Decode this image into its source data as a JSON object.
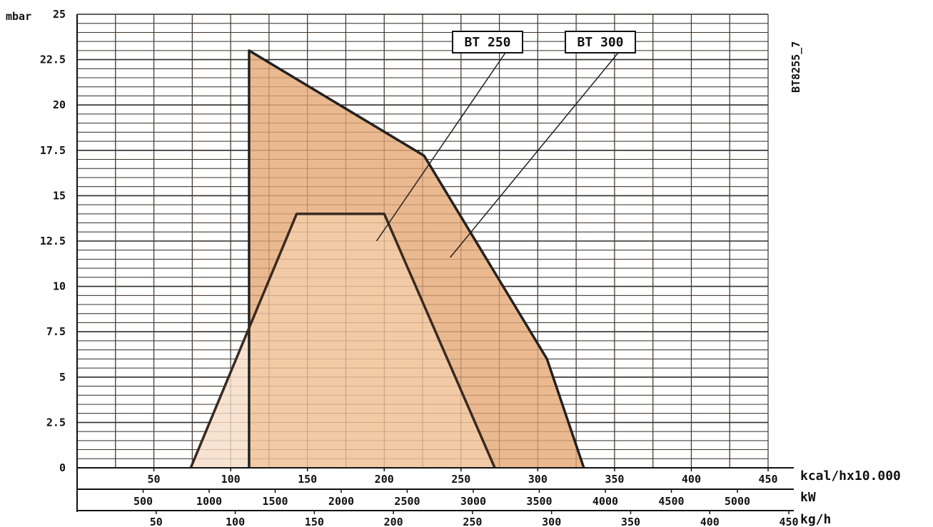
{
  "chart_data": {
    "type": "area",
    "y_unit_label": "mbar",
    "figure_code": "BT8255_7",
    "y_range": [
      0,
      25
    ],
    "y_ticks": [
      "0",
      "2.5",
      "5",
      "7.5",
      "10",
      "12.5",
      "15",
      "17.5",
      "20",
      "22.5",
      "25"
    ],
    "x_range_kcal": [
      0,
      450
    ],
    "x_axes": [
      {
        "name": "kcal",
        "unit_label": "kcal/hx10.000",
        "ticks": [
          {
            "label": "50",
            "kcal": 50
          },
          {
            "label": "100",
            "kcal": 100
          },
          {
            "label": "150",
            "kcal": 150
          },
          {
            "label": "200",
            "kcal": 200
          },
          {
            "label": "250",
            "kcal": 250
          },
          {
            "label": "300",
            "kcal": 300
          },
          {
            "label": "350",
            "kcal": 350
          },
          {
            "label": "400",
            "kcal": 400
          },
          {
            "label": "450",
            "kcal": 450
          }
        ]
      },
      {
        "name": "kW",
        "unit_label": "kW",
        "ticks": [
          {
            "label": "500",
            "kcal": 43
          },
          {
            "label": "1000",
            "kcal": 86
          },
          {
            "label": "1500",
            "kcal": 129
          },
          {
            "label": "2000",
            "kcal": 172
          },
          {
            "label": "2500",
            "kcal": 215
          },
          {
            "label": "3000",
            "kcal": 258
          },
          {
            "label": "3500",
            "kcal": 301
          },
          {
            "label": "4000",
            "kcal": 344
          },
          {
            "label": "4500",
            "kcal": 387
          },
          {
            "label": "5000",
            "kcal": 430
          }
        ]
      },
      {
        "name": "kgh",
        "unit_label": "kg/h",
        "ticks": [
          {
            "label": "50",
            "kcal": 51.5
          },
          {
            "label": "100",
            "kcal": 103
          },
          {
            "label": "150",
            "kcal": 154.5
          },
          {
            "label": "200",
            "kcal": 206
          },
          {
            "label": "250",
            "kcal": 257.5
          },
          {
            "label": "300",
            "kcal": 309
          },
          {
            "label": "350",
            "kcal": 360.5
          },
          {
            "label": "400",
            "kcal": 412
          },
          {
            "label": "450",
            "kcal": 463.5
          }
        ]
      }
    ],
    "series": [
      {
        "name": "BT 300",
        "color": "#e8b183",
        "points": [
          [
            112,
            0
          ],
          [
            112,
            7.9
          ],
          [
            112,
            23
          ],
          [
            226,
            17.2
          ],
          [
            306,
            6
          ],
          [
            330,
            0
          ]
        ]
      },
      {
        "name": "BT 250",
        "color": "#f2cba8",
        "points": [
          [
            74,
            0
          ],
          [
            143,
            14
          ],
          [
            200,
            14
          ],
          [
            272,
            0
          ]
        ]
      }
    ],
    "light_zone": {
      "color": "#f8e3d2",
      "x_range": [
        74,
        112
      ]
    },
    "labels": [
      {
        "series": "BT 250",
        "text": "BT 250",
        "anchor_kcal": 195,
        "anchor_mbar": 12.5
      },
      {
        "series": "BT 300",
        "text": "BT 300",
        "anchor_kcal": 243,
        "anchor_mbar": 11.6
      }
    ],
    "grid": true
  }
}
